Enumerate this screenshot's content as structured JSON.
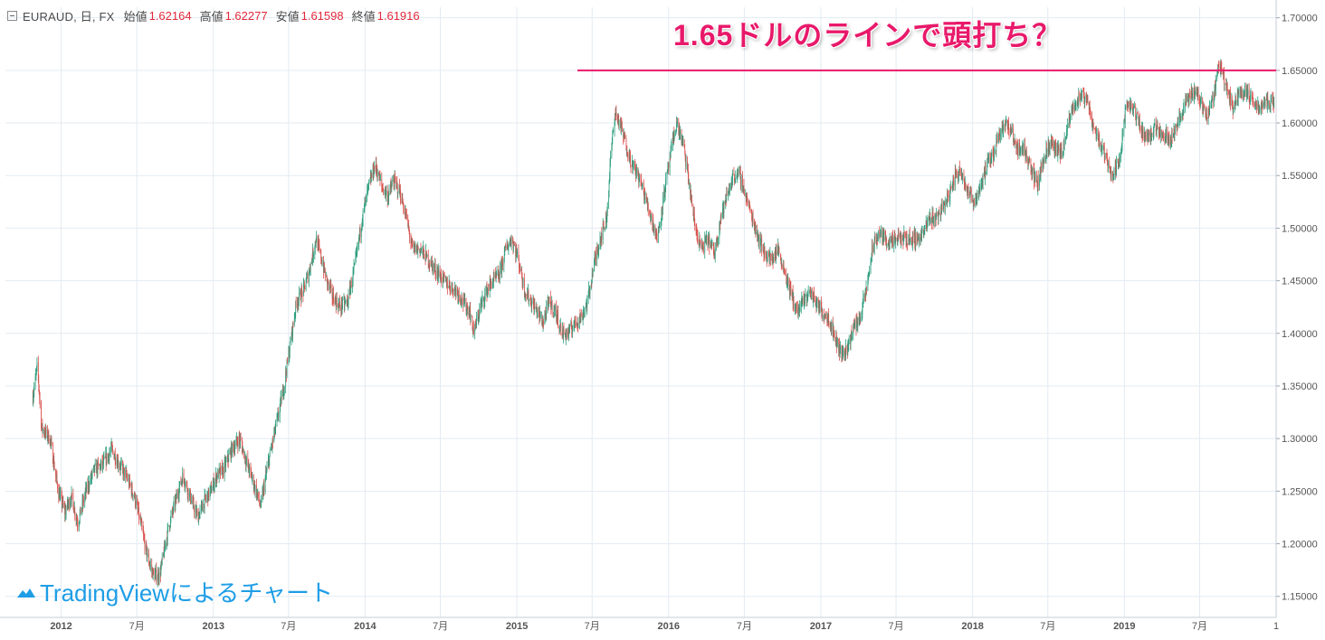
{
  "legend": {
    "symbol": "EURAUD, 日, FX",
    "open_label": "始値",
    "open_value": "1.62164",
    "high_label": "高値",
    "high_value": "1.62277",
    "low_label": "安値",
    "low_value": "1.61598",
    "close_label": "終値",
    "close_value": "1.61916",
    "value_color": "#e0283a"
  },
  "annotation": {
    "headline": "1.65ドルのラインで頭打ち？",
    "line_level": 1.65,
    "color": "#e8196a"
  },
  "watermark": {
    "text": "TradingViewによるチャート",
    "icon": "tradingview-cloud-icon",
    "color": "#1e9ee6"
  },
  "colors": {
    "up": "#2e9e7e",
    "down": "#d9534f",
    "grid": "#e3ebf2",
    "axis_text": "#555555"
  },
  "chart_data": {
    "type": "candlestick",
    "title": "",
    "symbol": "EURAUD",
    "timeframe": "日",
    "source": "FX",
    "ylim": [
      1.13,
      1.71
    ],
    "yticks": [
      "1.70000",
      "1.65000",
      "1.60000",
      "1.55000",
      "1.50000",
      "1.45000",
      "1.40000",
      "1.35000",
      "1.30000",
      "1.25000",
      "1.20000",
      "1.15000"
    ],
    "xticks": [
      "2012",
      "7月",
      "2013",
      "7月",
      "2014",
      "7月",
      "2015",
      "7月",
      "2016",
      "7月",
      "2017",
      "7月",
      "2018",
      "7月",
      "2019",
      "7月",
      "1"
    ],
    "xlim": [
      "2011-08-20",
      "2020-01-01"
    ],
    "grid": true,
    "series": [
      {
        "points": [
          [
            "2011-10-25",
            1.34
          ],
          [
            "2011-11-05",
            1.37
          ],
          [
            "2011-11-15",
            1.31
          ],
          [
            "2011-12-05",
            1.3
          ],
          [
            "2011-12-25",
            1.25
          ],
          [
            "2012-01-10",
            1.23
          ],
          [
            "2012-01-25",
            1.245
          ],
          [
            "2012-02-10",
            1.22
          ],
          [
            "2012-03-01",
            1.25
          ],
          [
            "2012-03-20",
            1.27
          ],
          [
            "2012-04-10",
            1.275
          ],
          [
            "2012-05-01",
            1.29
          ],
          [
            "2012-05-20",
            1.275
          ],
          [
            "2012-06-05",
            1.265
          ],
          [
            "2012-06-25",
            1.245
          ],
          [
            "2012-07-10",
            1.22
          ],
          [
            "2012-07-25",
            1.19
          ],
          [
            "2012-08-10",
            1.17
          ],
          [
            "2012-08-25",
            1.17
          ],
          [
            "2012-09-15",
            1.215
          ],
          [
            "2012-10-05",
            1.245
          ],
          [
            "2012-10-20",
            1.265
          ],
          [
            "2012-11-10",
            1.24
          ],
          [
            "2012-11-25",
            1.225
          ],
          [
            "2012-12-10",
            1.24
          ],
          [
            "2012-12-25",
            1.25
          ],
          [
            "2013-01-10",
            1.265
          ],
          [
            "2013-01-25",
            1.27
          ],
          [
            "2013-02-15",
            1.29
          ],
          [
            "2013-03-05",
            1.3
          ],
          [
            "2013-03-20",
            1.28
          ],
          [
            "2013-04-10",
            1.255
          ],
          [
            "2013-04-25",
            1.235
          ],
          [
            "2013-05-05",
            1.26
          ],
          [
            "2013-05-20",
            1.29
          ],
          [
            "2013-06-05",
            1.32
          ],
          [
            "2013-06-20",
            1.35
          ],
          [
            "2013-07-05",
            1.39
          ],
          [
            "2013-07-20",
            1.43
          ],
          [
            "2013-08-05",
            1.44
          ],
          [
            "2013-08-20",
            1.46
          ],
          [
            "2013-09-05",
            1.49
          ],
          [
            "2013-09-15",
            1.475
          ],
          [
            "2013-10-01",
            1.45
          ],
          [
            "2013-10-15",
            1.435
          ],
          [
            "2013-11-01",
            1.425
          ],
          [
            "2013-11-20",
            1.43
          ],
          [
            "2013-12-10",
            1.47
          ],
          [
            "2013-12-25",
            1.51
          ],
          [
            "2014-01-10",
            1.54
          ],
          [
            "2014-01-25",
            1.56
          ],
          [
            "2014-02-10",
            1.54
          ],
          [
            "2014-02-25",
            1.53
          ],
          [
            "2014-03-10",
            1.545
          ],
          [
            "2014-03-25",
            1.535
          ],
          [
            "2014-04-10",
            1.51
          ],
          [
            "2014-04-25",
            1.48
          ],
          [
            "2014-05-15",
            1.48
          ],
          [
            "2014-06-01",
            1.47
          ],
          [
            "2014-06-20",
            1.46
          ],
          [
            "2014-07-10",
            1.45
          ],
          [
            "2014-07-25",
            1.445
          ],
          [
            "2014-08-10",
            1.44
          ],
          [
            "2014-08-25",
            1.43
          ],
          [
            "2014-09-10",
            1.42
          ],
          [
            "2014-09-20",
            1.4
          ],
          [
            "2014-10-05",
            1.425
          ],
          [
            "2014-10-20",
            1.44
          ],
          [
            "2014-11-05",
            1.45
          ],
          [
            "2014-11-20",
            1.455
          ],
          [
            "2014-12-05",
            1.48
          ],
          [
            "2014-12-20",
            1.49
          ],
          [
            "2015-01-05",
            1.47
          ],
          [
            "2015-01-20",
            1.44
          ],
          [
            "2015-02-05",
            1.43
          ],
          [
            "2015-02-20",
            1.42
          ],
          [
            "2015-03-05",
            1.41
          ],
          [
            "2015-03-20",
            1.43
          ],
          [
            "2015-04-05",
            1.42
          ],
          [
            "2015-04-20",
            1.4
          ],
          [
            "2015-05-05",
            1.4
          ],
          [
            "2015-05-20",
            1.41
          ],
          [
            "2015-06-05",
            1.415
          ],
          [
            "2015-06-20",
            1.43
          ],
          [
            "2015-07-05",
            1.465
          ],
          [
            "2015-07-20",
            1.49
          ],
          [
            "2015-08-05",
            1.51
          ],
          [
            "2015-08-15",
            1.57
          ],
          [
            "2015-08-25",
            1.61
          ],
          [
            "2015-09-05",
            1.6
          ],
          [
            "2015-09-20",
            1.58
          ],
          [
            "2015-10-05",
            1.56
          ],
          [
            "2015-10-20",
            1.55
          ],
          [
            "2015-11-05",
            1.53
          ],
          [
            "2015-11-20",
            1.51
          ],
          [
            "2015-12-05",
            1.49
          ],
          [
            "2015-12-20",
            1.53
          ],
          [
            "2016-01-10",
            1.58
          ],
          [
            "2016-01-20",
            1.6
          ],
          [
            "2016-02-05",
            1.58
          ],
          [
            "2016-02-20",
            1.54
          ],
          [
            "2016-03-05",
            1.5
          ],
          [
            "2016-03-20",
            1.48
          ],
          [
            "2016-04-05",
            1.49
          ],
          [
            "2016-04-20",
            1.475
          ],
          [
            "2016-05-05",
            1.51
          ],
          [
            "2016-05-20",
            1.53
          ],
          [
            "2016-06-05",
            1.55
          ],
          [
            "2016-06-20",
            1.55
          ],
          [
            "2016-07-05",
            1.53
          ],
          [
            "2016-07-20",
            1.51
          ],
          [
            "2016-08-05",
            1.49
          ],
          [
            "2016-08-20",
            1.475
          ],
          [
            "2016-09-05",
            1.47
          ],
          [
            "2016-09-20",
            1.48
          ],
          [
            "2016-10-05",
            1.46
          ],
          [
            "2016-10-20",
            1.44
          ],
          [
            "2016-11-05",
            1.42
          ],
          [
            "2016-11-20",
            1.43
          ],
          [
            "2016-12-05",
            1.44
          ],
          [
            "2016-12-20",
            1.43
          ],
          [
            "2017-01-05",
            1.42
          ],
          [
            "2017-01-20",
            1.415
          ],
          [
            "2017-02-05",
            1.395
          ],
          [
            "2017-02-20",
            1.38
          ],
          [
            "2017-03-05",
            1.385
          ],
          [
            "2017-03-20",
            1.405
          ],
          [
            "2017-04-05",
            1.415
          ],
          [
            "2017-04-20",
            1.44
          ],
          [
            "2017-05-05",
            1.48
          ],
          [
            "2017-05-20",
            1.495
          ],
          [
            "2017-06-05",
            1.49
          ],
          [
            "2017-06-20",
            1.485
          ],
          [
            "2017-07-05",
            1.49
          ],
          [
            "2017-07-20",
            1.49
          ],
          [
            "2017-08-05",
            1.49
          ],
          [
            "2017-08-20",
            1.49
          ],
          [
            "2017-09-05",
            1.495
          ],
          [
            "2017-09-20",
            1.51
          ],
          [
            "2017-10-05",
            1.51
          ],
          [
            "2017-10-20",
            1.52
          ],
          [
            "2017-11-05",
            1.53
          ],
          [
            "2017-11-20",
            1.55
          ],
          [
            "2017-12-05",
            1.555
          ],
          [
            "2017-12-20",
            1.535
          ],
          [
            "2018-01-05",
            1.525
          ],
          [
            "2018-01-20",
            1.54
          ],
          [
            "2018-02-05",
            1.56
          ],
          [
            "2018-02-20",
            1.57
          ],
          [
            "2018-03-05",
            1.59
          ],
          [
            "2018-03-20",
            1.6
          ],
          [
            "2018-04-05",
            1.59
          ],
          [
            "2018-04-20",
            1.575
          ],
          [
            "2018-05-05",
            1.575
          ],
          [
            "2018-05-20",
            1.56
          ],
          [
            "2018-06-05",
            1.54
          ],
          [
            "2018-06-20",
            1.565
          ],
          [
            "2018-07-05",
            1.58
          ],
          [
            "2018-07-20",
            1.575
          ],
          [
            "2018-08-05",
            1.57
          ],
          [
            "2018-08-20",
            1.6
          ],
          [
            "2018-09-05",
            1.62
          ],
          [
            "2018-09-20",
            1.625
          ],
          [
            "2018-10-05",
            1.62
          ],
          [
            "2018-10-20",
            1.595
          ],
          [
            "2018-11-05",
            1.58
          ],
          [
            "2018-11-20",
            1.565
          ],
          [
            "2018-12-05",
            1.55
          ],
          [
            "2018-12-20",
            1.565
          ],
          [
            "2019-01-05",
            1.615
          ],
          [
            "2019-01-20",
            1.615
          ],
          [
            "2019-02-05",
            1.6
          ],
          [
            "2019-02-20",
            1.585
          ],
          [
            "2019-03-05",
            1.59
          ],
          [
            "2019-03-20",
            1.595
          ],
          [
            "2019-04-05",
            1.59
          ],
          [
            "2019-04-20",
            1.585
          ],
          [
            "2019-05-05",
            1.595
          ],
          [
            "2019-05-20",
            1.61
          ],
          [
            "2019-06-05",
            1.625
          ],
          [
            "2019-06-20",
            1.63
          ],
          [
            "2019-07-05",
            1.62
          ],
          [
            "2019-07-20",
            1.605
          ],
          [
            "2019-08-05",
            1.63
          ],
          [
            "2019-08-15",
            1.655
          ],
          [
            "2019-08-25",
            1.65
          ],
          [
            "2019-09-05",
            1.63
          ],
          [
            "2019-09-20",
            1.615
          ],
          [
            "2019-10-05",
            1.63
          ],
          [
            "2019-10-20",
            1.63
          ],
          [
            "2019-11-05",
            1.62
          ],
          [
            "2019-11-20",
            1.615
          ],
          [
            "2019-12-05",
            1.62
          ],
          [
            "2019-12-20",
            1.62
          ],
          [
            "2019-12-28",
            1.619
          ]
        ]
      }
    ]
  }
}
